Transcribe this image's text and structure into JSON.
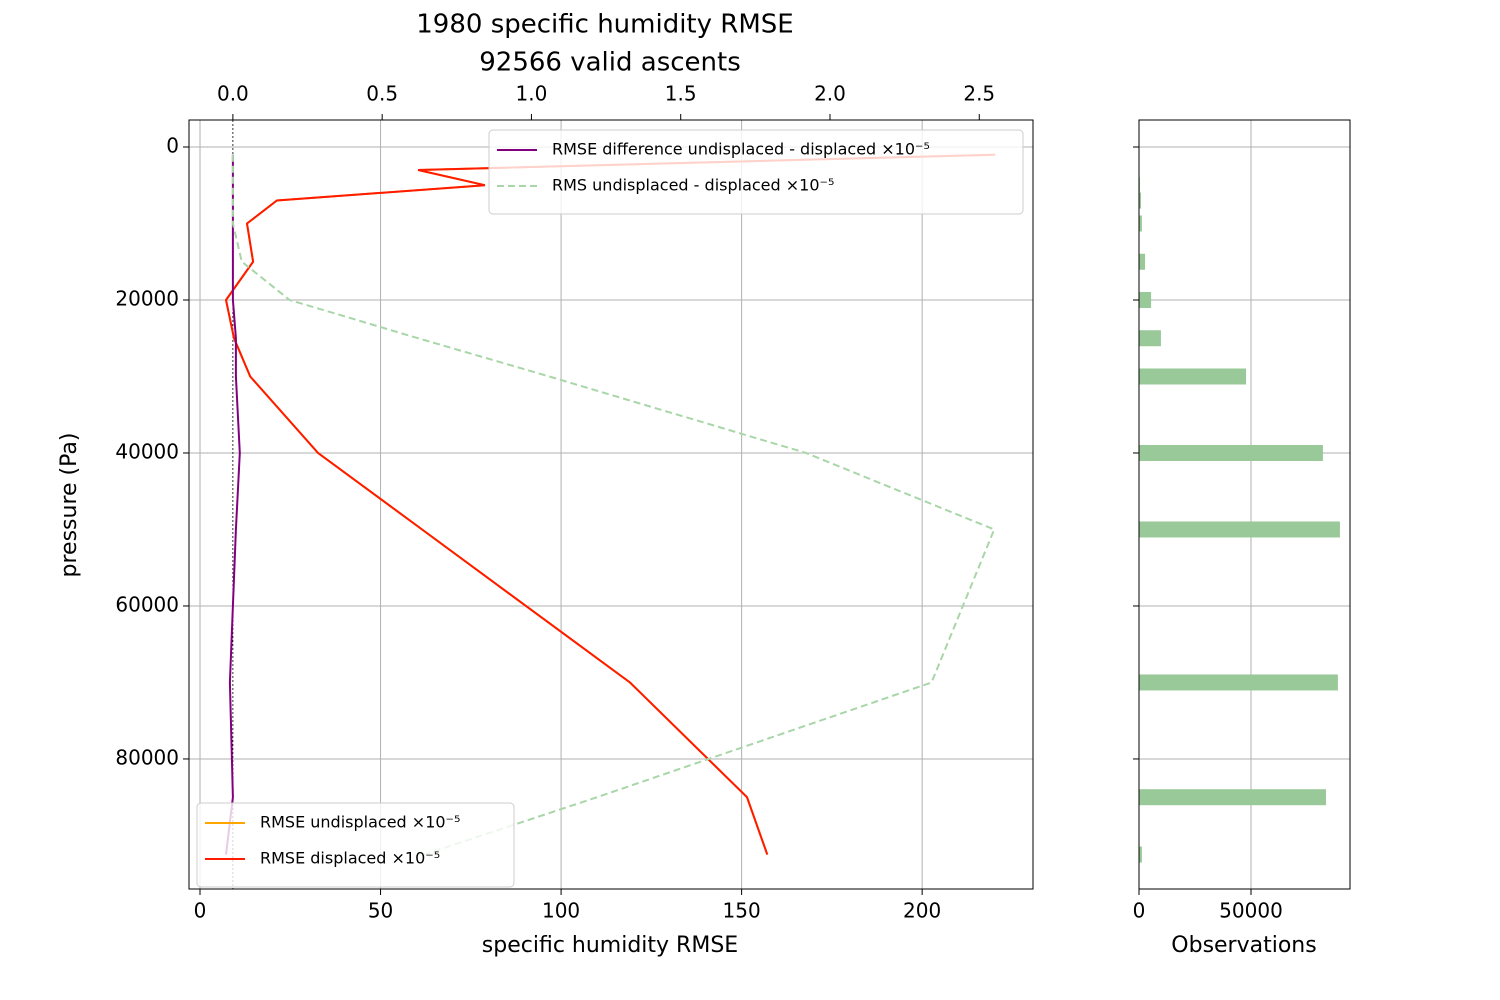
{
  "chart_data": [
    {
      "type": "line",
      "title": [
        "1980 specific humidity RMSE",
        "92566 valid ascents"
      ],
      "xlabel": "specific humidity RMSE",
      "ylabel": "pressure (Pa)",
      "y": [
        1000,
        3000,
        5000,
        7000,
        10000,
        15000,
        20000,
        25000,
        30000,
        40000,
        50000,
        70000,
        85000,
        92500
      ],
      "ylim": [
        97000,
        -3530
      ],
      "yticks": [
        0,
        20000,
        40000,
        60000,
        80000
      ],
      "xlim": [
        -3.05,
        230.7
      ],
      "xticks": [
        0,
        50,
        100,
        150,
        200
      ],
      "x2lim": [
        -0.147,
        2.68
      ],
      "x2ticks": [
        {
          "value": 0,
          "label": "0.0"
        },
        0.5,
        {
          "value": 1,
          "label": "1.0"
        },
        1.5,
        {
          "value": 2,
          "label": "2.0"
        },
        2.5
      ],
      "x2_reference_line": 0,
      "grid": true,
      "series": [
        {
          "name": "RMSE undisplaced ×10⁻⁵",
          "color": "#ffa500",
          "axis": "x",
          "legend": "lower left",
          "values": [
            220.2,
            60.4,
            78.9,
            21.3,
            13.0,
            14.7,
            7.2,
            9.4,
            13.9,
            32.7,
            61.5,
            119.1,
            151.5,
            157.1
          ]
        },
        {
          "name": "RMSE displaced ×10⁻⁵",
          "color": "#ff1a00",
          "axis": "x",
          "legend": "lower left",
          "values": [
            220.2,
            60.4,
            78.9,
            21.3,
            13.0,
            14.7,
            7.2,
            9.4,
            13.9,
            32.7,
            61.5,
            119.1,
            151.5,
            157.1
          ]
        },
        {
          "name": "RMSE difference undisplaced - displaced ×10⁻⁵",
          "color": "#800080",
          "axis": "x2",
          "legend": "upper right",
          "values": [
            0,
            0,
            0,
            0,
            0,
            0,
            0,
            0.01,
            0.01,
            0.023,
            0.01,
            -0.01,
            0,
            -0.023
          ]
        },
        {
          "name": "RMS undisplaced - displaced ×10⁻⁵",
          "color": "#a9d6a9",
          "axis": "x2",
          "legend": "upper right",
          "dashed": true,
          "values": [
            0,
            0,
            0,
            0,
            0,
            0.03,
            0.19,
            0.62,
            1.06,
            1.92,
            2.55,
            2.34,
            1.22,
            0.64
          ]
        }
      ]
    },
    {
      "type": "barh",
      "xlabel": "Observations",
      "y": [
        1000,
        3000,
        5000,
        7000,
        10000,
        15000,
        20000,
        25000,
        30000,
        40000,
        50000,
        70000,
        85000,
        92500
      ],
      "values": [
        0,
        0,
        400,
        900,
        1300,
        2700,
        5400,
        9800,
        47800,
        82100,
        89700,
        88800,
        83500,
        1300
      ],
      "color": "#99c999",
      "xlim": [
        0,
        94200
      ],
      "xticks": [
        0,
        50000
      ],
      "grid": true
    }
  ]
}
